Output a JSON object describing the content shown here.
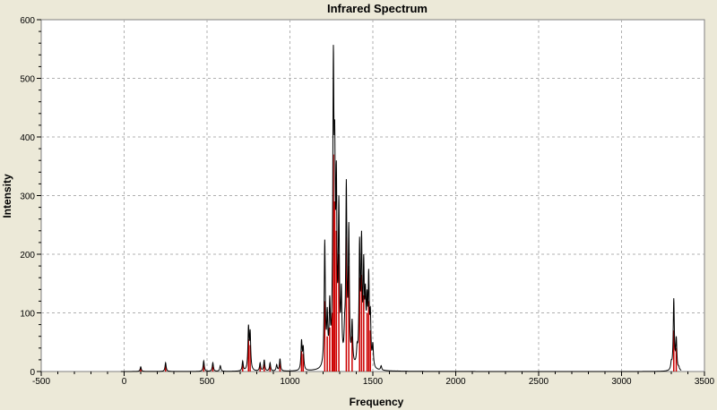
{
  "chart_data": {
    "type": "line",
    "title": "Infrared Spectrum",
    "xlabel": "Frequency",
    "ylabel": "Intensity",
    "xlim": [
      -500,
      3500
    ],
    "ylim": [
      0,
      600
    ],
    "x_ticks": [
      -500,
      0,
      500,
      1000,
      1500,
      2000,
      2500,
      3000,
      3500
    ],
    "y_ticks": [
      0,
      100,
      200,
      300,
      400,
      500,
      600
    ],
    "grid": true,
    "colors": {
      "spectrum": "#000000",
      "sticks": "#cc0000",
      "plot_background": "#ffffff",
      "frame_background": "#ece9d8",
      "grid": "#b0b0b0"
    },
    "series": [
      {
        "kind": "spectrum",
        "x": [
          -20,
          100,
          250,
          480,
          535,
          580,
          715,
          750,
          760,
          820,
          845,
          880,
          920,
          940,
          1070,
          1080,
          1210,
          1225,
          1240,
          1255,
          1262,
          1270,
          1280,
          1295,
          1310,
          1330,
          1340,
          1355,
          1375,
          1405,
          1420,
          1432,
          1445,
          1455,
          1465,
          1475,
          1485,
          1500,
          1550,
          1650,
          2000,
          2500,
          3000,
          3200,
          3300,
          3315,
          3330,
          3345,
          3360
        ],
        "y": [
          0,
          8,
          15,
          18,
          15,
          10,
          18,
          80,
          72,
          15,
          20,
          15,
          12,
          22,
          55,
          45,
          225,
          110,
          130,
          170,
          557,
          430,
          360,
          300,
          150,
          100,
          328,
          255,
          90,
          50,
          230,
          240,
          200,
          150,
          140,
          175,
          110,
          50,
          10,
          1,
          0,
          0,
          0,
          0,
          20,
          125,
          60,
          10,
          0
        ]
      },
      {
        "kind": "sticks",
        "x": [
          100,
          250,
          480,
          535,
          715,
          750,
          760,
          820,
          845,
          880,
          940,
          1070,
          1080,
          1210,
          1225,
          1240,
          1255,
          1262,
          1270,
          1280,
          1295,
          1340,
          1355,
          1375,
          1420,
          1432,
          1445,
          1465,
          1475,
          1485,
          3315,
          3330
        ],
        "y": [
          5,
          10,
          12,
          10,
          12,
          55,
          45,
          10,
          12,
          10,
          15,
          35,
          30,
          120,
          60,
          75,
          100,
          370,
          290,
          240,
          200,
          230,
          180,
          60,
          160,
          165,
          130,
          100,
          120,
          70,
          70,
          40
        ]
      }
    ]
  }
}
